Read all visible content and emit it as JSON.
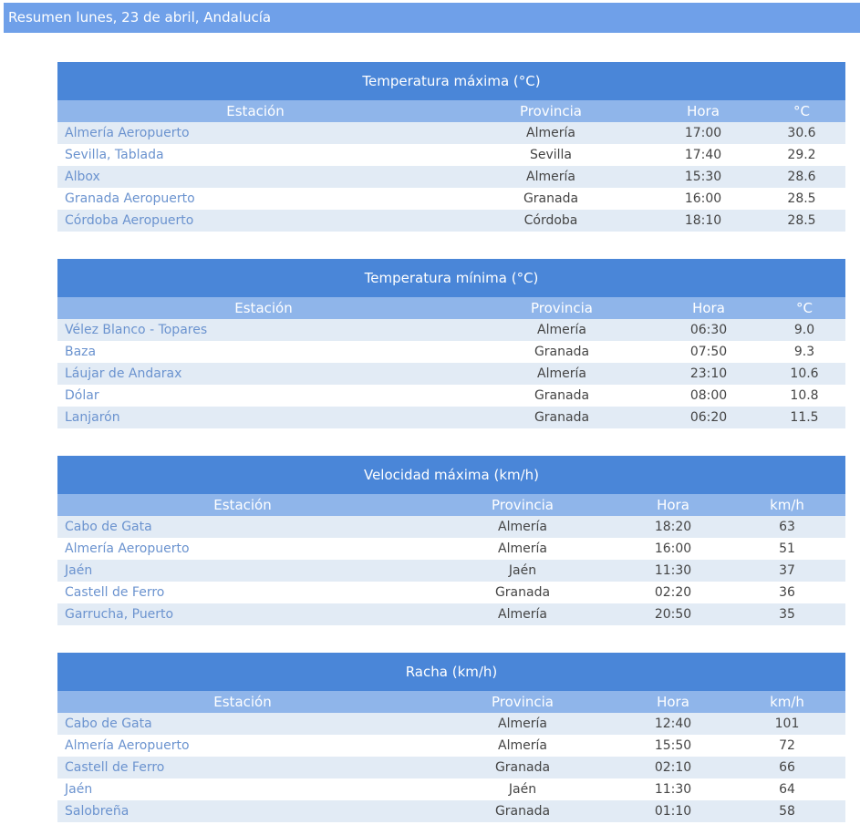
{
  "header": {
    "title": "Resumen lunes, 23 de abril, Andalucía"
  },
  "tables": [
    {
      "title": "Temperatura máxima (°C)",
      "columns": [
        "Estación",
        "Provincia",
        "Hora",
        "°C"
      ],
      "rows": [
        [
          "Almería Aeropuerto",
          "Almería",
          "17:00",
          "30.6"
        ],
        [
          "Sevilla, Tablada",
          "Sevilla",
          "17:40",
          "29.2"
        ],
        [
          "Albox",
          "Almería",
          "15:30",
          "28.6"
        ],
        [
          "Granada Aeropuerto",
          "Granada",
          "16:00",
          "28.5"
        ],
        [
          "Córdoba Aeropuerto",
          "Córdoba",
          "18:10",
          "28.5"
        ]
      ]
    },
    {
      "title": "Temperatura mínima (°C)",
      "columns": [
        "Estación",
        "Provincia",
        "Hora",
        "°C"
      ],
      "rows": [
        [
          "Vélez Blanco - Topares",
          "Almería",
          "06:30",
          "9.0"
        ],
        [
          "Baza",
          "Granada",
          "07:50",
          "9.3"
        ],
        [
          "Láujar de Andarax",
          "Almería",
          "23:10",
          "10.6"
        ],
        [
          "Dólar",
          "Granada",
          "08:00",
          "10.8"
        ],
        [
          "Lanjarón",
          "Granada",
          "06:20",
          "11.5"
        ]
      ]
    },
    {
      "title": "Velocidad máxima (km/h)",
      "columns": [
        "Estación",
        "Provincia",
        "Hora",
        "km/h"
      ],
      "rows": [
        [
          "Cabo de Gata",
          "Almería",
          "18:20",
          "63"
        ],
        [
          "Almería Aeropuerto",
          "Almería",
          "16:00",
          "51"
        ],
        [
          "Jaén",
          "Jaén",
          "11:30",
          "37"
        ],
        [
          "Castell de Ferro",
          "Granada",
          "02:20",
          "36"
        ],
        [
          "Garrucha, Puerto",
          "Almería",
          "20:50",
          "35"
        ]
      ]
    },
    {
      "title": "Racha (km/h)",
      "columns": [
        "Estación",
        "Provincia",
        "Hora",
        "km/h"
      ],
      "rows": [
        [
          "Cabo de Gata",
          "Almería",
          "12:40",
          "101"
        ],
        [
          "Almería Aeropuerto",
          "Almería",
          "15:50",
          "72"
        ],
        [
          "Castell de Ferro",
          "Granada",
          "02:10",
          "66"
        ],
        [
          "Jaén",
          "Jaén",
          "11:30",
          "64"
        ],
        [
          "Salobreña",
          "Granada",
          "01:10",
          "58"
        ]
      ]
    }
  ]
}
